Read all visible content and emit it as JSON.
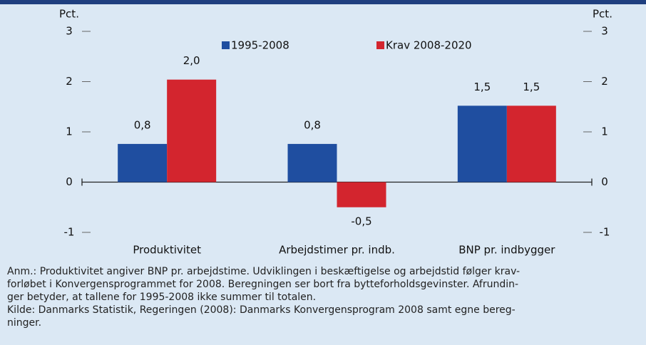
{
  "chart_data": {
    "type": "bar",
    "ylabel": "Pct.",
    "y2label": "Pct.",
    "categories": [
      "Produktivitet",
      "Arbejdstimer pr. indb.",
      "BNP pr. indbygger"
    ],
    "series": [
      {
        "name": "1995-2008",
        "color": "#1f4ea0",
        "values": [
          0.76,
          0.76,
          1.52
        ],
        "value_labels": [
          "0,8",
          "0,8",
          "1,5"
        ]
      },
      {
        "name": "Krav 2008-2020",
        "color": "#d3252e",
        "values": [
          2.04,
          -0.5,
          1.52
        ],
        "value_labels": [
          "2,0",
          "-0,5",
          "1,5"
        ]
      }
    ],
    "ylim": [
      -1,
      3
    ],
    "yticks": [
      -1,
      0,
      1,
      2,
      3
    ],
    "y2lim": [
      -1,
      3
    ],
    "y2ticks": [
      -1,
      0,
      1,
      2,
      3
    ],
    "notes": [
      "Anm.: Produktivitet angiver BNP pr. arbejdstime. Udviklingen i beskæftigelse og arbejdstid følger krav-",
      "forløbet i Konvergensprogrammet for 2008. Beregningen ser bort fra bytteforholdsgevinster. Afrundin-",
      "ger betyder, at tallene for 1995-2008 ikke summer til totalen.",
      "Kilde: Danmarks Statistik, Regeringen (2008): Danmarks Konvergensprogram 2008 samt egne bereg-",
      "ninger."
    ]
  }
}
